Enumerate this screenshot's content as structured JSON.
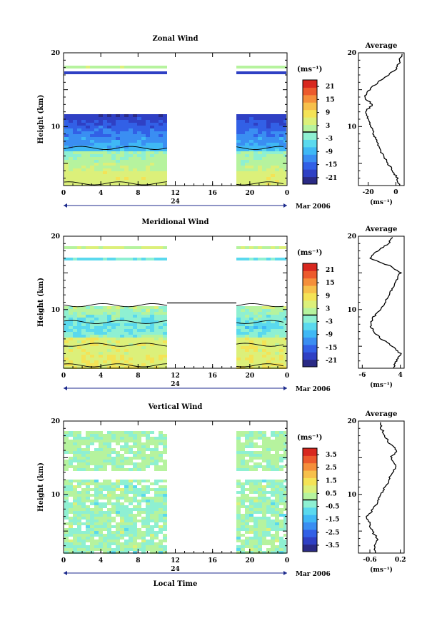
{
  "colors": {
    "scale": [
      "#2a2a85",
      "#2f40c4",
      "#3260e6",
      "#3a8ef2",
      "#3fb8f5",
      "#5ad9ee",
      "#8ef0d2",
      "#b6f39e",
      "#dcf07a",
      "#f4e356",
      "#f7c04b",
      "#f58f3b",
      "#ec5a2d",
      "#d8281f"
    ],
    "wind_line": "#000000",
    "time_arrow": "#1c2a8c"
  },
  "charts": [
    {
      "title": "Zonal Wind",
      "ylabel": "Height (km)",
      "yticks": [
        "10",
        "20"
      ],
      "xticks": [
        "0",
        "4",
        "8",
        "12",
        "16",
        "20",
        "0"
      ],
      "date_mark": "24",
      "date_label": "Mar 2006",
      "unit_label": "(ms⁻¹)",
      "colorbar_ticks": [
        "21",
        "15",
        "9",
        "3",
        "-3",
        "-9",
        "-15",
        "-21"
      ],
      "avg_title": "Average",
      "avg_xticks": [
        "-20",
        "0"
      ],
      "avg_xlabel": "(ms⁻¹)",
      "avg_yticks": [
        "10",
        "20"
      ]
    },
    {
      "title": "Meridional Wind",
      "ylabel": "Height (km)",
      "yticks": [
        "10",
        "20"
      ],
      "xticks": [
        "0",
        "4",
        "8",
        "12",
        "16",
        "20",
        "0"
      ],
      "date_mark": "24",
      "date_label": "Mar 2006",
      "unit_label": "(ms⁻¹)",
      "colorbar_ticks": [
        "21",
        "15",
        "9",
        "3",
        "-3",
        "-9",
        "-15",
        "-21"
      ],
      "avg_title": "Average",
      "avg_xticks": [
        "-6",
        "4"
      ],
      "avg_xlabel": "(ms⁻¹)",
      "avg_yticks": [
        "10",
        "20"
      ]
    },
    {
      "title": "Vertical Wind",
      "ylabel": "Height (km)",
      "yticks": [
        "10",
        "20"
      ],
      "xticks": [
        "0",
        "4",
        "8",
        "12",
        "16",
        "20",
        "0"
      ],
      "date_mark": "24",
      "date_label": "Mar 2006",
      "unit_label": "(ms⁻¹)",
      "colorbar_ticks": [
        "3.5",
        "2.5",
        "1.5",
        "0.5",
        "-0.5",
        "-1.5",
        "-2.5",
        "-3.5"
      ],
      "avg_title": "Average",
      "avg_xticks": [
        "-0.6",
        "0.2"
      ],
      "avg_xlabel": "(ms⁻¹)",
      "avg_yticks": [
        "10",
        "20"
      ],
      "xlabel": "Local Time"
    }
  ],
  "chart_data": [
    {
      "type": "heatmap",
      "title": "Zonal Wind",
      "xlabel": "",
      "ylabel": "Height (km)",
      "x_range_hours": [
        0,
        24
      ],
      "ylim": [
        2,
        20
      ],
      "data_gap_hours": [
        11,
        18
      ],
      "colorbar_range": [
        -24,
        24
      ],
      "profile": {
        "title": "Average",
        "xlim": [
          -27,
          6
        ],
        "heights": [
          2,
          3,
          4,
          5,
          6,
          7,
          8,
          9,
          10,
          11,
          12,
          13,
          14,
          15,
          16,
          17,
          18,
          19,
          20
        ],
        "values": [
          3,
          1,
          -2,
          -6,
          -9,
          -12,
          -14,
          -16,
          -18,
          -20,
          -22,
          -17,
          -23,
          -19,
          -13,
          -5,
          1,
          3,
          4
        ]
      }
    },
    {
      "type": "heatmap",
      "title": "Meridional Wind",
      "xlabel": "",
      "ylabel": "Height (km)",
      "x_range_hours": [
        0,
        24
      ],
      "ylim": [
        2,
        20
      ],
      "data_gap_hours": [
        11,
        18
      ],
      "colorbar_range": [
        -24,
        24
      ],
      "profile": {
        "title": "Average",
        "xlim": [
          -7,
          5
        ],
        "heights": [
          2,
          3,
          4,
          5,
          6,
          7,
          8,
          9,
          10,
          11,
          12,
          13,
          14,
          15,
          16,
          17,
          18,
          19,
          20
        ],
        "values": [
          2,
          3,
          4,
          2,
          -1,
          -3,
          -4,
          -3,
          -1,
          0,
          1,
          2,
          3,
          4,
          1,
          -4,
          -2,
          1,
          2
        ]
      }
    },
    {
      "type": "heatmap",
      "title": "Vertical Wind",
      "xlabel": "Local Time",
      "ylabel": "Height (km)",
      "x_range_hours": [
        0,
        24
      ],
      "ylim": [
        2,
        20
      ],
      "data_gap_hours": [
        11,
        18
      ],
      "colorbar_range": [
        -4,
        4
      ],
      "profile": {
        "title": "Average",
        "xlim": [
          -0.9,
          0.3
        ],
        "heights": [
          2,
          3,
          4,
          5,
          6,
          7,
          8,
          9,
          10,
          11,
          12,
          13,
          14,
          15,
          16,
          17,
          18,
          19,
          20
        ],
        "values": [
          -0.45,
          -0.5,
          -0.4,
          -0.55,
          -0.6,
          -0.7,
          -0.5,
          -0.4,
          -0.3,
          -0.2,
          -0.1,
          0.0,
          0.1,
          -0.05,
          0.1,
          -0.1,
          -0.2,
          -0.3,
          -0.35
        ]
      }
    }
  ]
}
